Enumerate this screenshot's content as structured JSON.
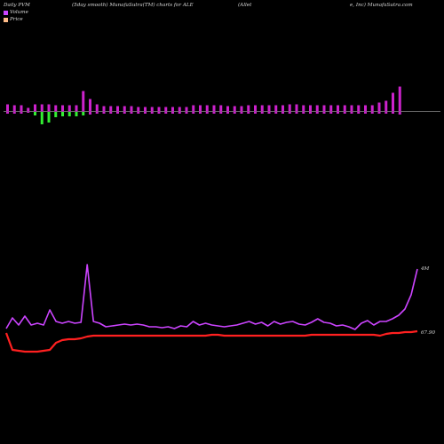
{
  "header": {
    "part1": "Daily PVM",
    "part2": "(5day smooth) MunafaSutra(TM) charts for ALE",
    "part3": "(Allet",
    "part4": "e, Inc) MunafaSutra.com"
  },
  "colors": {
    "background": "#000000",
    "volume_line": "#cc44ff",
    "price_line": "#ff2020",
    "bar_up": "#cc22cc",
    "bar_down": "#33ee33",
    "axis": "#888888",
    "volume_swatch": "#cc44ff",
    "price_swatch": "#ffbb88"
  },
  "chart_data": {
    "type": "line",
    "legend": [
      "Volume",
      "Price"
    ],
    "legend_position": "top-left",
    "volume_end_label": "4M",
    "price_end_label": "67.90",
    "pvm_bars": [
      {
        "up": 8,
        "down": 2
      },
      {
        "up": 7,
        "down": 2
      },
      {
        "up": 7,
        "down": 2
      },
      {
        "up": 4,
        "down": 1
      },
      {
        "up": 8,
        "down": 4
      },
      {
        "up": 8,
        "down": 14
      },
      {
        "up": 8,
        "down": 12
      },
      {
        "up": 7,
        "down": 6
      },
      {
        "up": 7,
        "down": 5
      },
      {
        "up": 7,
        "down": 5
      },
      {
        "up": 7,
        "down": 5
      },
      {
        "up": 23,
        "down": 4
      },
      {
        "up": 14,
        "down": 3
      },
      {
        "up": 8,
        "down": 2
      },
      {
        "up": 6,
        "down": 2
      },
      {
        "up": 6,
        "down": 2
      },
      {
        "up": 6,
        "down": 2
      },
      {
        "up": 6,
        "down": 2
      },
      {
        "up": 6,
        "down": 2
      },
      {
        "up": 5,
        "down": 2
      },
      {
        "up": 5,
        "down": 2
      },
      {
        "up": 5,
        "down": 2
      },
      {
        "up": 5,
        "down": 2
      },
      {
        "up": 5,
        "down": 2
      },
      {
        "up": 5,
        "down": 2
      },
      {
        "up": 5,
        "down": 2
      },
      {
        "up": 5,
        "down": 2
      },
      {
        "up": 7,
        "down": 2
      },
      {
        "up": 7,
        "down": 2
      },
      {
        "up": 7,
        "down": 2
      },
      {
        "up": 7,
        "down": 2
      },
      {
        "up": 7,
        "down": 2
      },
      {
        "up": 6,
        "down": 2
      },
      {
        "up": 6,
        "down": 2
      },
      {
        "up": 6,
        "down": 2
      },
      {
        "up": 7,
        "down": 2
      },
      {
        "up": 7,
        "down": 2
      },
      {
        "up": 7,
        "down": 2
      },
      {
        "up": 7,
        "down": 2
      },
      {
        "up": 7,
        "down": 2
      },
      {
        "up": 7,
        "down": 2
      },
      {
        "up": 8,
        "down": 2
      },
      {
        "up": 8,
        "down": 2
      },
      {
        "up": 7,
        "down": 2
      },
      {
        "up": 7,
        "down": 2
      },
      {
        "up": 7,
        "down": 2
      },
      {
        "up": 7,
        "down": 2
      },
      {
        "up": 7,
        "down": 2
      },
      {
        "up": 7,
        "down": 2
      },
      {
        "up": 7,
        "down": 2
      },
      {
        "up": 7,
        "down": 2
      },
      {
        "up": 7,
        "down": 2
      },
      {
        "up": 7,
        "down": 2
      },
      {
        "up": 7,
        "down": 2
      },
      {
        "up": 10,
        "down": 2
      },
      {
        "up": 12,
        "down": 2
      },
      {
        "up": 21,
        "down": 2
      },
      {
        "up": 28,
        "down": 3
      }
    ],
    "volume_series": [
      370,
      358,
      366,
      356,
      366,
      364,
      366,
      349,
      362,
      364,
      362,
      364,
      363,
      298,
      362,
      364,
      368,
      367,
      366,
      365,
      366,
      365,
      366,
      368,
      368,
      369,
      368,
      370,
      367,
      368,
      362,
      366,
      364,
      366,
      367,
      368,
      367,
      366,
      364,
      362,
      365,
      363,
      367,
      362,
      365,
      363,
      362,
      365,
      366,
      363,
      359,
      363,
      364,
      367,
      366,
      368,
      371,
      364,
      361,
      366,
      362,
      362,
      359,
      355,
      348,
      332,
      303
    ],
    "price_series": [
      375,
      394,
      395,
      396,
      396,
      396,
      395,
      394,
      386,
      383,
      382,
      382,
      381,
      379,
      378,
      378,
      378,
      378,
      378,
      378,
      378,
      378,
      378,
      378,
      378,
      378,
      378,
      378,
      378,
      378,
      378,
      378,
      378,
      377,
      377,
      378,
      378,
      378,
      378,
      378,
      378,
      378,
      378,
      378,
      378,
      378,
      378,
      378,
      378,
      377,
      377,
      377,
      377,
      377,
      377,
      377,
      377,
      377,
      377,
      377,
      378,
      376,
      375,
      375,
      374,
      374,
      373
    ]
  }
}
